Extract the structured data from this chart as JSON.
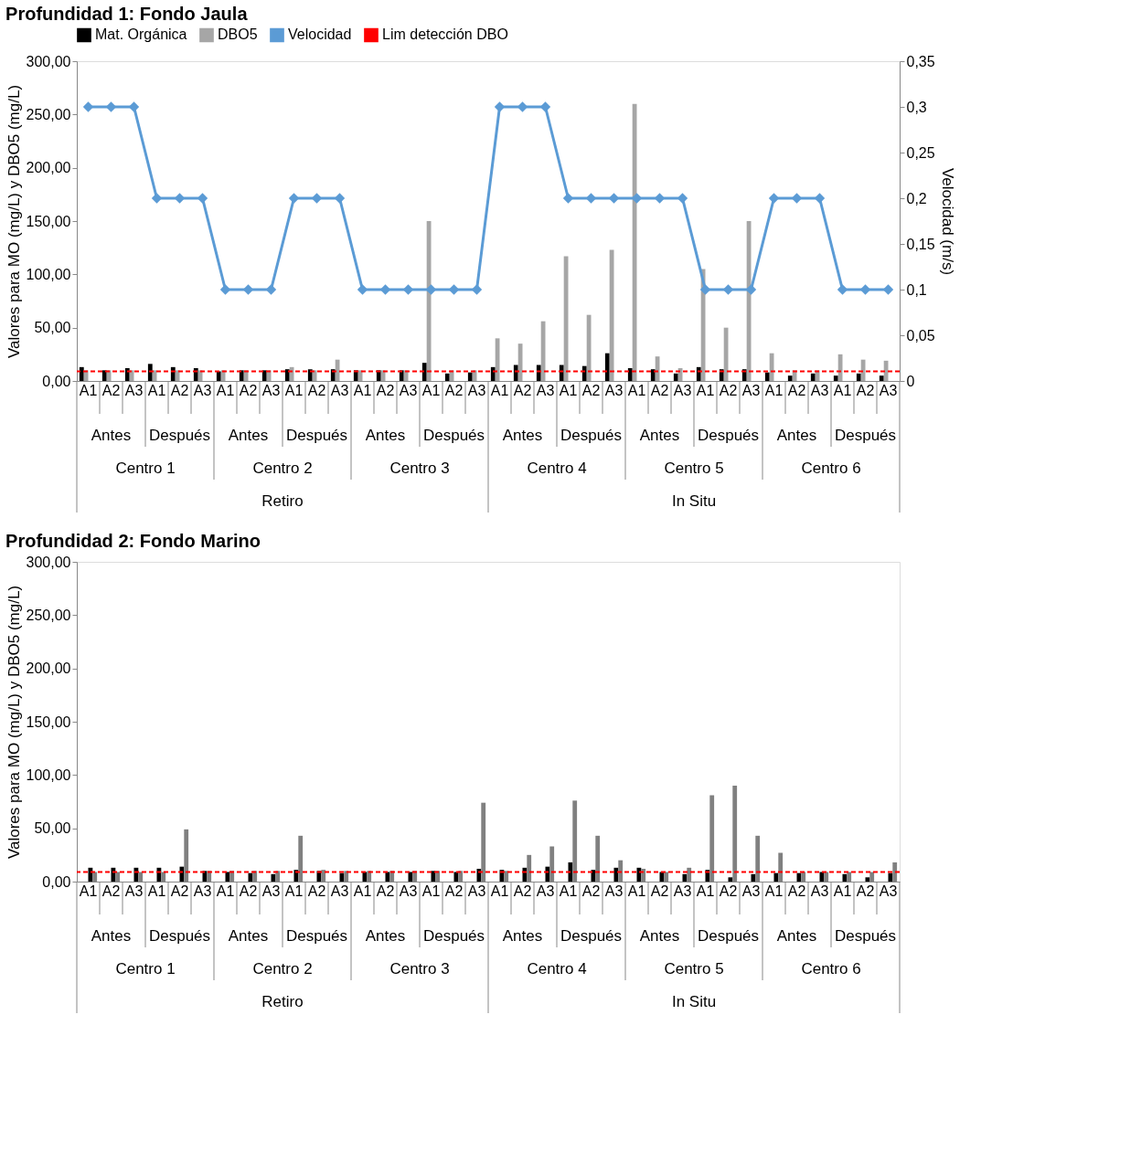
{
  "chart_data": [
    {
      "type": "bar",
      "title": "Profundidad 1: Fondo Jaula",
      "ylabel": "Valores para MO  (mg/L) y DBO5 (mg/L)",
      "y2label": "Velocidad  (m/s)",
      "categories": [
        "A1",
        "A2",
        "A3",
        "A1",
        "A2",
        "A3",
        "A1",
        "A2",
        "A3",
        "A1",
        "A2",
        "A3",
        "A1",
        "A2",
        "A3",
        "A1",
        "A2",
        "A3",
        "A1",
        "A2",
        "A3",
        "A1",
        "A2",
        "A3",
        "A1",
        "A2",
        "A3",
        "A1",
        "A2",
        "A3",
        "A1",
        "A2",
        "A3",
        "A1",
        "A2",
        "A3"
      ],
      "series": [
        {
          "name": "Mat. Orgánica",
          "color": "#000000",
          "values": [
            13,
            10,
            12,
            16,
            13,
            12,
            9,
            10,
            10,
            11,
            11,
            11,
            10,
            10,
            10,
            17,
            7,
            8,
            13,
            15,
            15,
            15,
            14,
            26,
            12,
            11,
            7,
            13,
            11,
            11,
            8,
            5,
            7,
            5,
            7,
            5
          ]
        },
        {
          "name": "DBO5",
          "color": "#a6a6a6",
          "values": [
            10,
            10,
            10,
            10,
            10,
            10,
            10,
            10,
            10,
            13,
            10,
            20,
            10,
            10,
            10,
            150,
            10,
            10,
            40,
            35,
            56,
            117,
            62,
            123,
            260,
            23,
            12,
            105,
            50,
            150,
            26,
            10,
            10,
            25,
            20,
            19
          ]
        },
        {
          "name": "Velocidad",
          "type": "line",
          "axis": "y2",
          "color": "#5b9bd5",
          "values": [
            0.3,
            0.3,
            0.3,
            0.2,
            0.2,
            0.2,
            0.1,
            0.1,
            0.1,
            0.2,
            0.2,
            0.2,
            0.1,
            0.1,
            0.1,
            0.1,
            0.1,
            0.1,
            0.3,
            0.3,
            0.3,
            0.2,
            0.2,
            0.2,
            0.2,
            0.2,
            0.2,
            0.1,
            0.1,
            0.1,
            0.2,
            0.2,
            0.2,
            0.1,
            0.1,
            0.1
          ]
        }
      ],
      "marker": "diamond",
      "line_style": "solid",
      "ref_lines": [
        {
          "axis": "y",
          "value": 9,
          "label": "Lim detección DBO",
          "color": "#ff0000",
          "line_style": "dashed"
        }
      ],
      "ylim": [
        0,
        300
      ],
      "yticks": [
        {
          "value": 0,
          "label": "0,00"
        },
        {
          "value": 50,
          "label": "50,00"
        },
        {
          "value": 100,
          "label": "100,00"
        },
        {
          "value": 150,
          "label": "150,00"
        },
        {
          "value": 200,
          "label": "200,00"
        },
        {
          "value": 250,
          "label": "250,00"
        },
        {
          "value": 300,
          "label": "300,00"
        }
      ],
      "y2lim": [
        0,
        0.35
      ],
      "y2ticks": [
        0,
        {
          "value": 0.05,
          "label": "0,05"
        },
        {
          "value": 0.1,
          "label": "0,1"
        },
        {
          "value": 0.15,
          "label": "0,15"
        },
        {
          "value": 0.2,
          "label": "0,2"
        },
        {
          "value": 0.25,
          "label": "0,25"
        },
        {
          "value": 0.3,
          "label": "0,3"
        },
        {
          "value": 0.35,
          "label": "0,35"
        }
      ],
      "annotations": [
        "Antes",
        "Después",
        "Antes",
        "Después",
        "Antes",
        "Después",
        "Antes",
        "Después",
        "Antes",
        "Después",
        "Antes",
        "Después",
        "Centro 1",
        "Centro 2",
        "Centro 3",
        "Centro 4",
        "Centro 5",
        "Centro 6",
        "Retiro",
        "In Situ"
      ],
      "legend": "top",
      "grid": false
    },
    {
      "type": "bar",
      "title": "Profundidad 2: Fondo Marino",
      "ylabel": "Valores para MO  (mg/L) y DBO5 (mg/L)",
      "categories": [
        "A1",
        "A2",
        "A3",
        "A1",
        "A2",
        "A3",
        "A1",
        "A2",
        "A3",
        "A1",
        "A2",
        "A3",
        "A1",
        "A2",
        "A3",
        "A1",
        "A2",
        "A3",
        "A1",
        "A2",
        "A3",
        "A1",
        "A2",
        "A3",
        "A1",
        "A2",
        "A3",
        "A1",
        "A2",
        "A3",
        "A1",
        "A2",
        "A3",
        "A1",
        "A2",
        "A3"
      ],
      "series": [
        {
          "color": "#000000",
          "values": [
            13,
            13,
            13,
            13,
            14,
            10,
            9,
            8,
            7,
            11,
            10,
            8,
            9,
            9,
            9,
            10,
            9,
            12,
            11,
            13,
            14,
            18,
            11,
            13,
            13,
            9,
            7,
            11,
            4,
            7,
            8,
            8,
            9,
            7,
            4,
            8
          ]
        },
        {
          "color": "#808080",
          "values": [
            9,
            9,
            9,
            9,
            49,
            10,
            10,
            10,
            10,
            43,
            11,
            10,
            10,
            10,
            10,
            10,
            10,
            74,
            10,
            25,
            33,
            76,
            43,
            20,
            12,
            9,
            13,
            81,
            90,
            43,
            27,
            9,
            9,
            9,
            9,
            18
          ]
        }
      ],
      "ref_lines": [
        {
          "axis": "y",
          "value": 9,
          "color": "#ff0000",
          "line_style": "dashed"
        }
      ],
      "ylim": [
        0,
        300
      ],
      "yticks": [
        {
          "value": 0,
          "label": "0,00"
        },
        {
          "value": 50,
          "label": "50,00"
        },
        {
          "value": 100,
          "label": "100,00"
        },
        {
          "value": 150,
          "label": "150,00"
        },
        {
          "value": 200,
          "label": "200,00"
        },
        {
          "value": 250,
          "label": "250,00"
        },
        {
          "value": 300,
          "label": "300,00"
        }
      ],
      "annotations": [
        "Antes",
        "Después",
        "Antes",
        "Después",
        "Antes",
        "Después",
        "Antes",
        "Después",
        "Antes",
        "Después",
        "Antes",
        "Después",
        "Centro 1",
        "Centro 2",
        "Centro 3",
        "Centro 4",
        "Centro 5",
        "Centro 6",
        "Retiro",
        "In Situ"
      ],
      "legend": false,
      "grid": false
    }
  ]
}
